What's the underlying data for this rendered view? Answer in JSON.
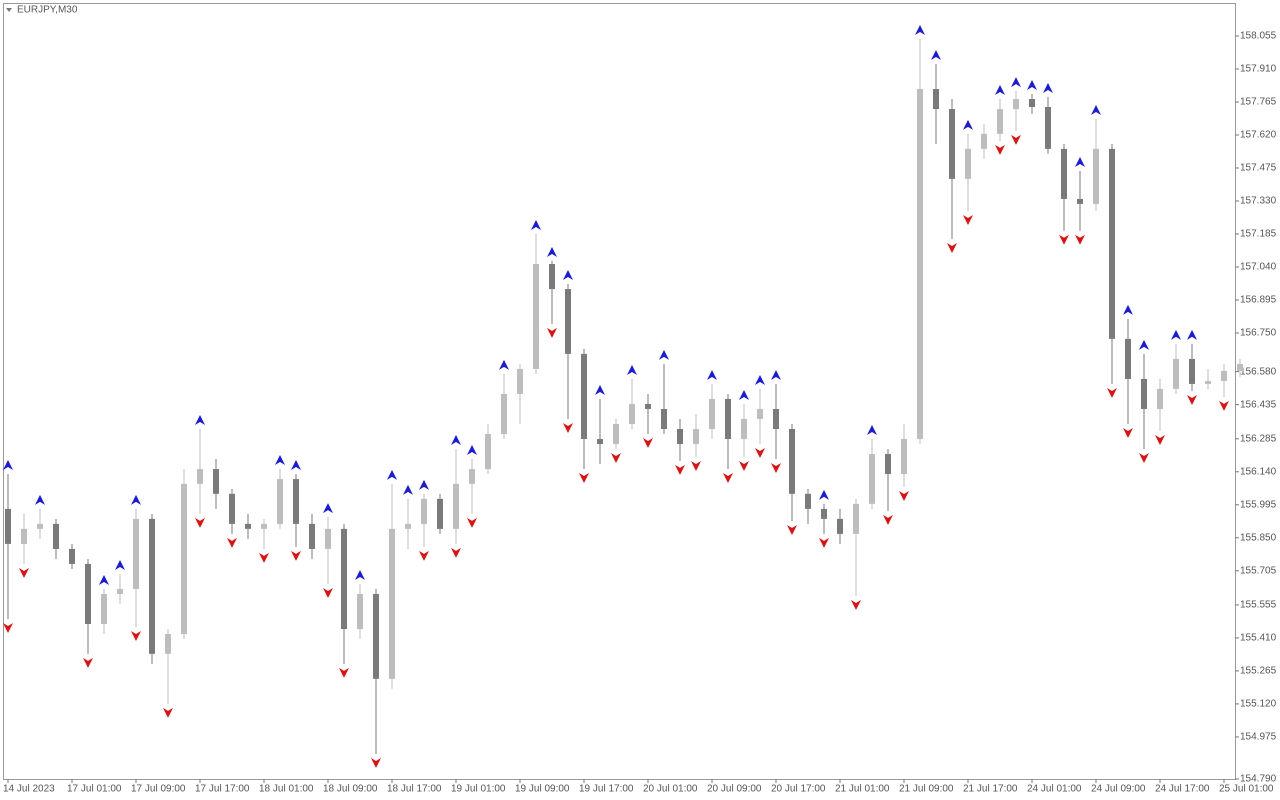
{
  "chart_data": {
    "type": "candlestick",
    "title": "EURJPY,M30",
    "categories": [
      "14 Jul 2023",
      null,
      null,
      null,
      "17 Jul 01:00",
      null,
      null,
      null,
      "17 Jul 09:00",
      null,
      null,
      null,
      "17 Jul 17:00",
      null,
      null,
      null,
      "18 Jul 01:00",
      null,
      null,
      null,
      "18 Jul 09:00",
      null,
      null,
      null,
      "18 Jul 17:00",
      null,
      null,
      null,
      "19 Jul 01:00",
      null,
      null,
      null,
      "19 Jul 09:00",
      null,
      null,
      null,
      "19 Jul 17:00",
      null,
      null,
      null,
      "20 Jul 01:00",
      null,
      null,
      null,
      "20 Jul 09:00",
      null,
      null,
      null,
      "20 Jul 17:00",
      null,
      null,
      null,
      "21 Jul 01:00",
      null,
      null,
      null,
      "21 Jul 09:00",
      null,
      null,
      null,
      "21 Jul 17:00",
      null,
      null,
      null,
      "24 Jul 01:00",
      null,
      null,
      null,
      "24 Jul 09:00",
      null,
      null,
      null,
      "24 Jul 17:00",
      null,
      null,
      null,
      "25 Jul 01:00",
      null
    ],
    "open": [
      155.977,
      155.823,
      155.889,
      155.911,
      155.801,
      155.735,
      155.471,
      155.603,
      155.625,
      155.933,
      155.34,
      155.427,
      156.087,
      156.152,
      156.043,
      155.911,
      155.889,
      155.911,
      156.108,
      155.911,
      155.801,
      155.889,
      155.449,
      155.603,
      155.23,
      155.889,
      155.911,
      156.021,
      155.889,
      156.087,
      156.152,
      156.306,
      156.482,
      156.592,
      157.053,
      156.943,
      156.658,
      156.284,
      156.262,
      156.35,
      156.438,
      156.416,
      156.328,
      156.262,
      156.328,
      156.46,
      156.284,
      156.372,
      156.416,
      156.328,
      156.043,
      155.977,
      155.933,
      155.867,
      155.999,
      156.218,
      156.13,
      156.284,
      157.822,
      157.734,
      157.427,
      157.559,
      157.625,
      157.734,
      157.778,
      157.743,
      157.559,
      157.339,
      157.317,
      157.559,
      156.724,
      156.548,
      156.416,
      156.504,
      156.636,
      156.526,
      156.539,
      156.583
    ],
    "high": [
      156.13,
      155.955,
      155.977,
      155.933,
      155.823,
      155.757,
      155.625,
      155.691,
      155.977,
      155.955,
      155.449,
      156.152,
      156.328,
      156.196,
      156.065,
      155.955,
      155.933,
      156.152,
      156.13,
      155.955,
      155.941,
      155.911,
      155.647,
      155.625,
      156.087,
      156.021,
      156.043,
      156.043,
      156.24,
      156.196,
      156.35,
      156.57,
      156.614,
      157.185,
      157.066,
      156.965,
      156.68,
      156.46,
      156.372,
      156.548,
      156.482,
      156.614,
      156.372,
      156.394,
      156.526,
      156.482,
      156.438,
      156.504,
      156.526,
      156.35,
      156.065,
      155.999,
      155.977,
      156.021,
      156.284,
      156.24,
      156.35,
      158.042,
      157.932,
      157.778,
      157.625,
      157.668,
      157.778,
      157.813,
      157.8,
      157.787,
      157.581,
      157.462,
      157.69,
      157.581,
      156.812,
      156.658,
      156.548,
      156.702,
      156.702,
      156.592,
      156.614,
      156.636
    ],
    "low": [
      155.493,
      155.735,
      155.845,
      155.757,
      155.713,
      155.34,
      155.427,
      155.559,
      155.458,
      155.296,
      155.12,
      155.405,
      155.955,
      155.977,
      155.867,
      155.845,
      155.801,
      155.889,
      155.81,
      155.757,
      155.647,
      155.296,
      155.405,
      154.9,
      155.186,
      155.801,
      155.81,
      155.867,
      155.823,
      155.955,
      156.13,
      156.284,
      156.35,
      156.57,
      156.79,
      156.372,
      156.152,
      156.174,
      156.24,
      156.328,
      156.306,
      156.306,
      156.188,
      156.205,
      156.284,
      156.152,
      156.205,
      156.262,
      156.196,
      155.924,
      155.911,
      155.867,
      155.823,
      155.594,
      155.977,
      155.968,
      156.073,
      156.262,
      157.581,
      157.163,
      157.286,
      157.515,
      157.594,
      157.638,
      157.712,
      157.537,
      157.199,
      157.199,
      157.286,
      156.526,
      156.35,
      156.24,
      156.319,
      156.482,
      156.495,
      156.504,
      156.469,
      156.557
    ],
    "close": [
      155.823,
      155.889,
      155.911,
      155.801,
      155.735,
      155.471,
      155.603,
      155.625,
      155.933,
      155.34,
      155.427,
      156.087,
      156.152,
      156.043,
      155.911,
      155.889,
      155.911,
      156.108,
      155.911,
      155.801,
      155.889,
      155.449,
      155.603,
      155.23,
      155.889,
      155.911,
      156.021,
      155.889,
      156.087,
      156.152,
      156.306,
      156.482,
      156.592,
      157.053,
      156.943,
      156.658,
      156.284,
      156.262,
      156.35,
      156.438,
      156.416,
      156.328,
      156.262,
      156.328,
      156.46,
      156.284,
      156.372,
      156.416,
      156.328,
      156.043,
      155.977,
      155.933,
      155.867,
      155.999,
      156.218,
      156.13,
      156.284,
      157.822,
      157.734,
      157.427,
      157.559,
      157.625,
      157.734,
      157.778,
      157.743,
      157.559,
      157.339,
      157.317,
      157.559,
      156.724,
      156.548,
      156.416,
      156.504,
      156.636,
      156.526,
      156.539,
      156.583,
      156.614
    ],
    "up_arrows": [
      156.13,
      null,
      155.977,
      null,
      null,
      null,
      155.625,
      155.691,
      155.977,
      null,
      null,
      null,
      156.328,
      null,
      null,
      null,
      null,
      156.152,
      156.13,
      null,
      155.941,
      null,
      155.647,
      null,
      156.087,
      156.021,
      156.043,
      null,
      156.24,
      156.196,
      null,
      156.57,
      null,
      157.185,
      157.066,
      156.965,
      null,
      156.46,
      null,
      156.548,
      null,
      156.614,
      null,
      null,
      156.526,
      null,
      156.438,
      156.504,
      156.526,
      null,
      null,
      155.999,
      null,
      null,
      156.284,
      null,
      null,
      158.042,
      157.932,
      null,
      157.625,
      null,
      157.778,
      157.813,
      157.8,
      157.787,
      null,
      157.462,
      157.69,
      null,
      156.812,
      156.658,
      null,
      156.702,
      156.702,
      null,
      null,
      null
    ],
    "down_arrows": [
      155.493,
      155.735,
      null,
      null,
      null,
      155.34,
      null,
      null,
      155.458,
      null,
      155.12,
      null,
      155.955,
      null,
      155.867,
      null,
      155.801,
      null,
      155.81,
      null,
      155.647,
      155.296,
      null,
      154.9,
      null,
      null,
      155.81,
      null,
      155.823,
      155.955,
      null,
      null,
      null,
      null,
      156.79,
      156.372,
      156.152,
      null,
      156.24,
      null,
      156.306,
      null,
      156.188,
      156.205,
      null,
      156.152,
      156.205,
      156.262,
      156.196,
      155.924,
      null,
      155.867,
      null,
      155.594,
      null,
      155.968,
      156.073,
      null,
      null,
      157.163,
      157.286,
      null,
      157.594,
      157.638,
      null,
      null,
      157.199,
      157.199,
      null,
      156.526,
      156.35,
      156.24,
      156.319,
      null,
      156.495,
      null,
      156.469,
      null
    ],
    "up_color": "#bdbdbd",
    "down_color": "#7a7a7a",
    "up_arrow_color": "#1a1adb",
    "down_arrow_color": "#e01010",
    "ylim": [
      154.79,
      158.2
    ],
    "yticks": [
      158.055,
      {
        "value": 157.91,
        "label": "157.910"
      },
      157.765,
      {
        "value": 157.62,
        "label": "157.620"
      },
      157.475,
      {
        "value": 157.33,
        "label": "157.330"
      },
      157.185,
      {
        "value": 157.04,
        "label": "157.040"
      },
      156.895,
      {
        "value": 156.75,
        "label": "156.750"
      },
      {
        "value": 156.58,
        "label": "156.580"
      },
      156.435,
      156.285,
      {
        "value": 156.14,
        "label": "156.140"
      },
      155.995,
      {
        "value": 155.85,
        "label": "155.850"
      },
      155.705,
      155.555,
      {
        "value": 155.41,
        "label": "155.410"
      },
      155.265,
      {
        "value": 155.12,
        "label": "155.120"
      },
      154.975,
      {
        "value": 154.79,
        "label": "154.790"
      }
    ]
  }
}
